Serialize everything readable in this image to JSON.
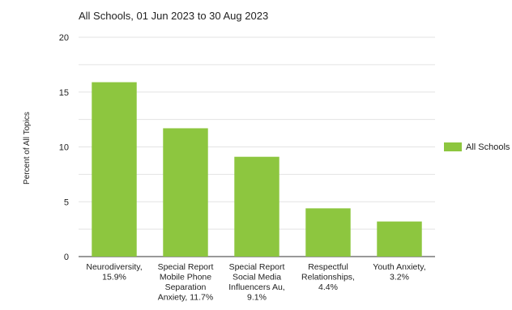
{
  "chart_data": {
    "type": "bar",
    "title": "All Schools, 01 Jun 2023 to 30 Aug 2023",
    "ylabel": "Percent of All Topics",
    "xlabel": "",
    "ylim": [
      0,
      20
    ],
    "yticks": [
      "0",
      "5",
      "10",
      "15",
      "20"
    ],
    "grid": true,
    "legend_position": "right",
    "categories": [
      [
        "Neurodiversity,",
        "15.9%"
      ],
      [
        "Special Report",
        "Mobile Phone",
        "Separation",
        "Anxiety, 11.7%"
      ],
      [
        "Special Report",
        "Social Media",
        "Influencers Au,",
        "9.1%"
      ],
      [
        "Respectful",
        "Relationships,",
        "4.4%"
      ],
      [
        "Youth Anxiety,",
        "3.2%"
      ]
    ],
    "series": [
      {
        "name": "All Schools",
        "color": "#8dc63f",
        "values": [
          15.9,
          11.7,
          9.1,
          4.4,
          3.2
        ]
      }
    ]
  }
}
